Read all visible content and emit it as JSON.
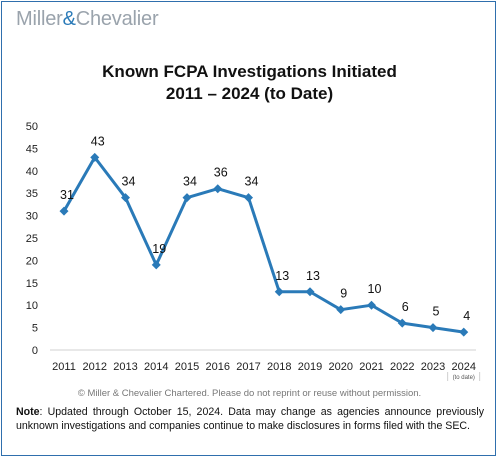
{
  "logo": {
    "part1": "Miller",
    "amp": "&",
    "part2": "Chevalier"
  },
  "copyright": "© Miller & Chevalier Chartered. Please do not reprint or reuse without permission.",
  "note": {
    "label": "Note",
    "text": ": Updated through October 15, 2024. Data may change as agencies announce previously unknown investigations and companies continue to make disclosures in forms filed with the SEC."
  },
  "chart_data": {
    "type": "line",
    "title": "Known FCPA Investigations Initiated",
    "subtitle": "2011 – 2024 (to Date)",
    "categories": [
      "2011",
      "2012",
      "2013",
      "2014",
      "2015",
      "2016",
      "2017",
      "2018",
      "2019",
      "2020",
      "2021",
      "2022",
      "2023",
      "2024"
    ],
    "category_note": {
      "index": 13,
      "text": "(to date)"
    },
    "values": [
      31,
      43,
      34,
      19,
      34,
      36,
      34,
      13,
      13,
      9,
      10,
      6,
      5,
      4
    ],
    "yticks": [
      0,
      5,
      10,
      15,
      20,
      25,
      30,
      35,
      40,
      45,
      50
    ],
    "ylim": [
      0,
      50
    ],
    "xlabel": "",
    "ylabel": "",
    "grid": false,
    "line_color": "#2a7ab8",
    "marker": "diamond"
  }
}
